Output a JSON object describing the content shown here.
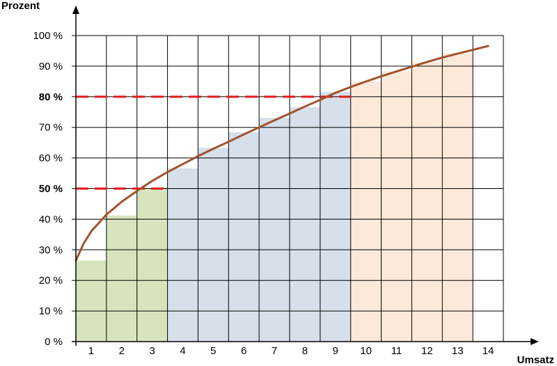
{
  "chart_data": {
    "type": "bar",
    "ylabel": "Prozent",
    "xlabel": "Umsatz",
    "categories": [
      "1",
      "2",
      "3",
      "4",
      "5",
      "6",
      "7",
      "8",
      "9",
      "10",
      "11",
      "12",
      "13",
      "14"
    ],
    "ylim": [
      0,
      100
    ],
    "xlim": [
      0.5,
      14.5
    ],
    "yticks": [
      {
        "value": 0,
        "label": "0 %",
        "bold": false
      },
      {
        "value": 10,
        "label": "10 %",
        "bold": false
      },
      {
        "value": 20,
        "label": "20 %",
        "bold": false
      },
      {
        "value": 30,
        "label": "30 %",
        "bold": false
      },
      {
        "value": 40,
        "label": "40 %",
        "bold": false
      },
      {
        "value": 50,
        "label": "50 %",
        "bold": true
      },
      {
        "value": 60,
        "label": "60 %",
        "bold": false
      },
      {
        "value": 70,
        "label": "70 %",
        "bold": false
      },
      {
        "value": 80,
        "label": "80 %",
        "bold": true
      },
      {
        "value": 90,
        "label": "90 %",
        "bold": false
      },
      {
        "value": 100,
        "label": "100 %",
        "bold": false
      }
    ],
    "grid": true,
    "bars": [
      {
        "category": "1",
        "value": 26.5,
        "group": "A"
      },
      {
        "category": "2",
        "value": 41.2,
        "group": "A"
      },
      {
        "category": "3",
        "value": 50,
        "group": "A"
      },
      {
        "category": "4",
        "value": 56.6,
        "group": "B"
      },
      {
        "category": "5",
        "value": 63.3,
        "group": "B"
      },
      {
        "category": "6",
        "value": 68.4,
        "group": "B"
      },
      {
        "category": "7",
        "value": 73.1,
        "group": "B"
      },
      {
        "category": "8",
        "value": 76.6,
        "group": "B"
      },
      {
        "category": "9",
        "value": 81.5,
        "group": "B"
      },
      {
        "category": "10",
        "value": 85,
        "group": "C"
      },
      {
        "category": "11",
        "value": 88.3,
        "group": "C"
      },
      {
        "category": "12",
        "value": 91.4,
        "group": "C"
      },
      {
        "category": "13",
        "value": 94.3,
        "group": "C"
      }
    ],
    "group_colors": {
      "A": "#d7e4bd",
      "B": "#d6dfea",
      "C": "#fde9d9"
    },
    "curve": {
      "color": "#a0522d",
      "points": [
        [
          0.5,
          26.5
        ],
        [
          0.75,
          32
        ],
        [
          1,
          36
        ],
        [
          1.5,
          41.5
        ],
        [
          2,
          45.7
        ],
        [
          2.5,
          49.2
        ],
        [
          3,
          52.5
        ],
        [
          3.5,
          55.4
        ],
        [
          4,
          58
        ],
        [
          4.5,
          60.6
        ],
        [
          5,
          63
        ],
        [
          5.5,
          65.3
        ],
        [
          6,
          67.7
        ],
        [
          6.5,
          70
        ],
        [
          7,
          72.3
        ],
        [
          7.5,
          74.5
        ],
        [
          8,
          76.8
        ],
        [
          8.5,
          79
        ],
        [
          9,
          81.3
        ],
        [
          9.5,
          83.2
        ],
        [
          10,
          85
        ],
        [
          10.5,
          86.7
        ],
        [
          11,
          88.3
        ],
        [
          11.5,
          89.8
        ],
        [
          12,
          91.4
        ],
        [
          12.5,
          92.8
        ],
        [
          13,
          94.1
        ],
        [
          13.5,
          95.3
        ],
        [
          14,
          96.6
        ]
      ]
    },
    "reference_lines": [
      {
        "y": 50,
        "x_end": 3.5,
        "color": "#e31a1c"
      },
      {
        "y": 80,
        "x_end": 9.5,
        "color": "#e31a1c"
      }
    ]
  }
}
